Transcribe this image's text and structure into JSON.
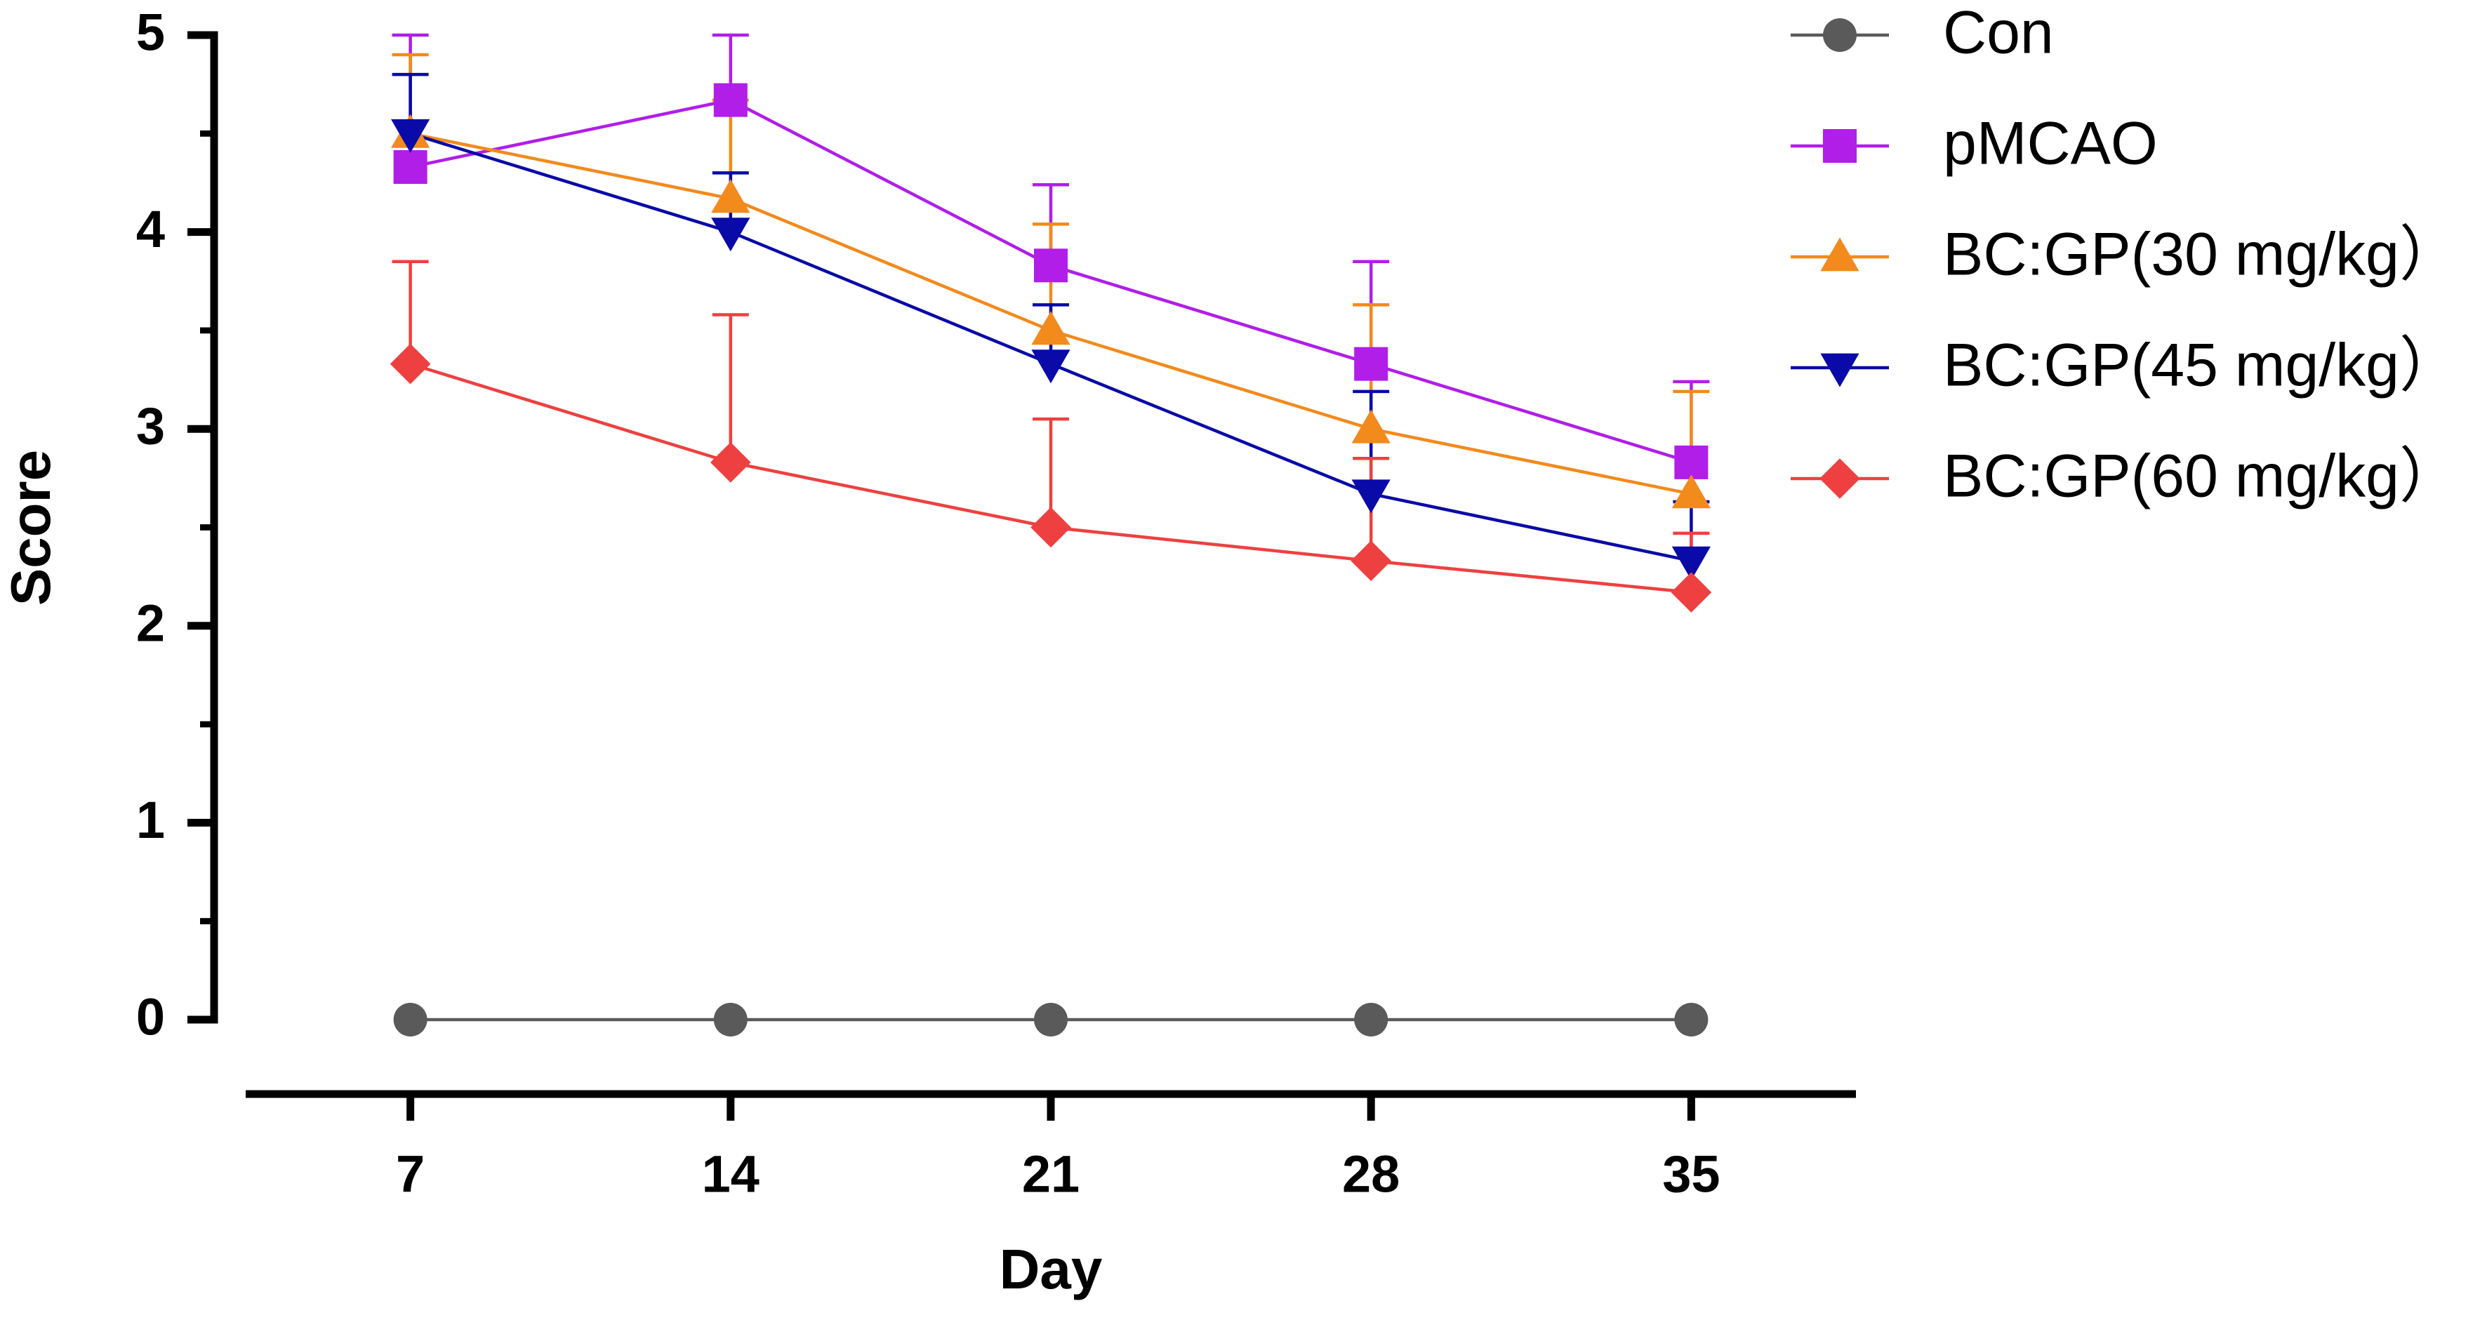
{
  "chart_data": {
    "type": "line",
    "xlabel": "Day",
    "ylabel": "Score",
    "x": [
      7,
      14,
      21,
      28,
      35
    ],
    "xlim": [
      3.4,
      38.6
    ],
    "xticks": [
      7,
      14,
      21,
      28,
      35
    ],
    "ylim": [
      0,
      5
    ],
    "yticks": [
      0,
      1,
      2,
      3,
      4,
      5
    ],
    "yminorticks": [
      0.5,
      1.5,
      2.5,
      3.5,
      4.5
    ],
    "grid": false,
    "legend": "right",
    "series": [
      {
        "name": "Con",
        "color": "#5a5a5a",
        "marker": "circle",
        "values": [
          0,
          0,
          0,
          0,
          0
        ]
      },
      {
        "name": "pMCAO",
        "color": "#b01ee8",
        "marker": "square",
        "values": [
          4.33,
          4.67,
          3.83,
          3.33,
          2.83
        ],
        "errors": [
          0.67,
          0.33,
          0.41,
          0.52,
          0.41
        ]
      },
      {
        "name": "BC:GP(30 mg/kg）",
        "color": "#f28a1c",
        "marker": "triangle-up",
        "values": [
          4.5,
          4.17,
          3.5,
          3.0,
          2.67
        ],
        "errors": [
          0.4,
          0.5,
          0.54,
          0.63,
          0.52
        ]
      },
      {
        "name": "BC:GP(45 mg/kg）",
        "color": "#0a0aa8",
        "marker": "triangle-down",
        "values": [
          4.5,
          4.0,
          3.33,
          2.67,
          2.33
        ],
        "errors": [
          0.3,
          0.3,
          0.3,
          0.52,
          0.3
        ]
      },
      {
        "name": "BC:GP(60 mg/kg）",
        "color": "#ee4040",
        "marker": "diamond",
        "values": [
          3.33,
          2.83,
          2.5,
          2.33,
          2.17
        ],
        "errors": [
          0.52,
          0.75,
          0.55,
          0.52,
          0.3
        ]
      }
    ]
  }
}
